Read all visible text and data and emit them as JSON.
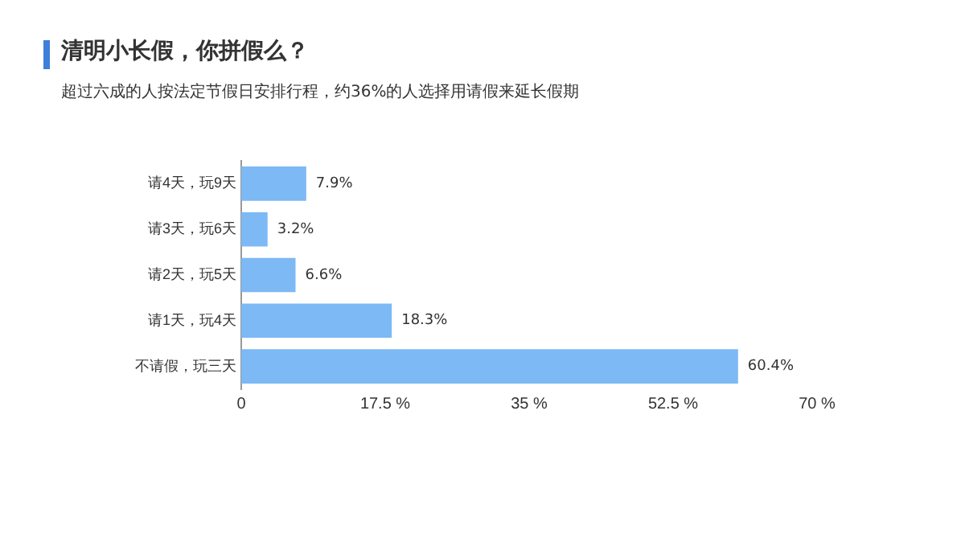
{
  "chart_data": {
    "type": "bar",
    "orientation": "horizontal",
    "title": "清明小长假，你拼假么？",
    "subtitle": "超过六成的人按法定节假日安排行程，约36%的人选择用请假来延长假期",
    "categories": [
      "请4天，玩9天",
      "请3天，玩6天",
      "请2天，玩5天",
      "请1天，玩4天",
      "不请假，玩三天"
    ],
    "values": [
      7.9,
      3.2,
      6.6,
      18.3,
      60.4
    ],
    "value_labels": [
      "7.9%",
      "3.2%",
      "6.6%",
      "18.3%",
      "60.4%"
    ],
    "color": "#7cb9f5",
    "xlim": [
      0,
      70
    ],
    "xticks": [
      0,
      {
        "value": 17.5,
        "label": "17.5 %"
      },
      {
        "value": 35,
        "label": "35 %"
      },
      {
        "value": 52.5,
        "label": "52.5 %"
      },
      {
        "value": 70,
        "label": "70 %"
      }
    ],
    "grid": false,
    "legend": false
  }
}
